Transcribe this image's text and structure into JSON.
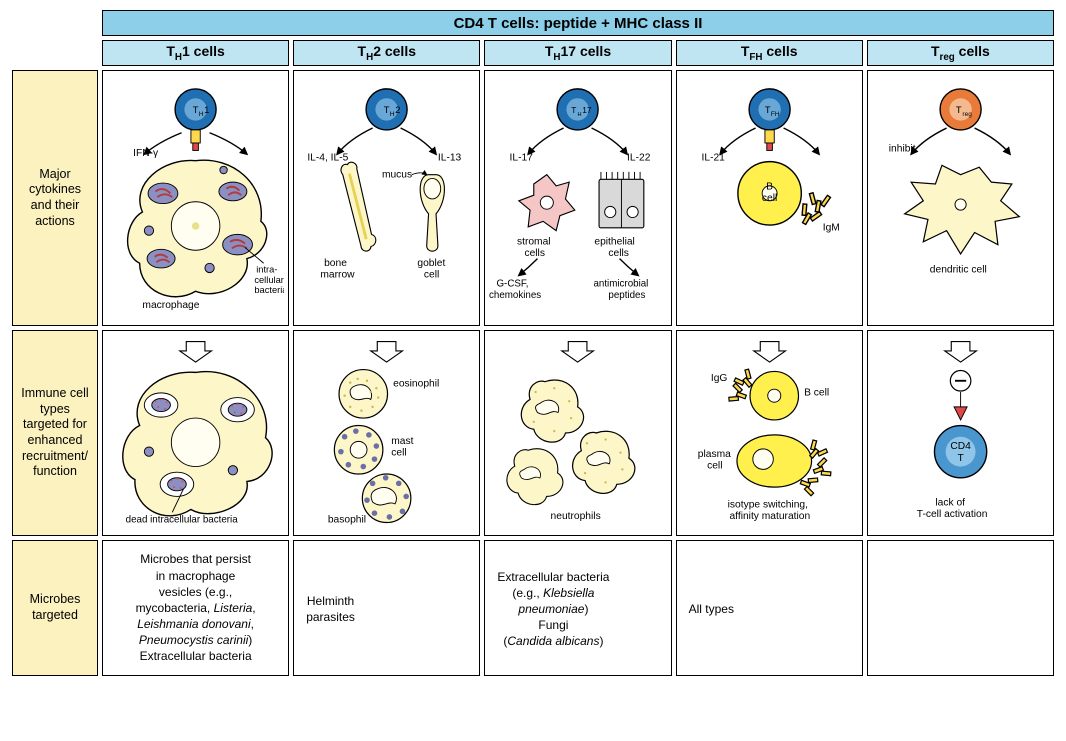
{
  "colors": {
    "banner_bg": "#8dcee8",
    "colhead_bg": "#bfe5f2",
    "rowhead_bg": "#fbf2c0",
    "border": "#000000",
    "tcell_fill": "#1f6fb2",
    "tcell_inner": "#69a8d6",
    "treg_fill": "#e87b3a",
    "treg_inner": "#f4b98f",
    "macrophage_fill": "#fdf6c8",
    "macrophage_stroke": "#000000",
    "nucleus_fill": "#8b8fc2",
    "bacteria_fill": "#b33a3a",
    "bcell_fill": "#fff04d",
    "bcell_stroke": "#000000",
    "stromal_fill": "#f4c6c6",
    "epithelial_fill": "#d9d9d9",
    "receptor_yellow": "#ffd84d",
    "receptor_red": "#e04848",
    "dendritic_fill": "#fdf6c8",
    "cd4t_fill": "#4a97d0"
  },
  "fonts": {
    "header_size": 15,
    "colhead_size": 14,
    "rowhead_size": 12.5,
    "body_size": 12,
    "label_size": 11
  },
  "header": {
    "banner": "CD4 T cells: peptide + MHC class II"
  },
  "columns": [
    {
      "id": "th1",
      "label_html": "T<sub class='small'>H</sub>1 cells",
      "tcell_label": "T_H1"
    },
    {
      "id": "th2",
      "label_html": "T<sub class='small'>H</sub>2 cells",
      "tcell_label": "T_H2"
    },
    {
      "id": "th17",
      "label_html": "T<sub class='small'>H</sub>17 cells",
      "tcell_label": "T_H17"
    },
    {
      "id": "tfh",
      "label_html": "T<sub class='small'>FH</sub> cells",
      "tcell_label": "T_FH"
    },
    {
      "id": "treg",
      "label_html": "T<sub class='small'>reg</sub> cells",
      "tcell_label": "T_reg"
    }
  ],
  "rows": [
    {
      "id": "cytokines",
      "label": "Major cytokines and their actions"
    },
    {
      "id": "targets",
      "label": "Immune cell types targeted for enhanced recruitment/ function"
    },
    {
      "id": "microbes",
      "label": "Microbes targeted"
    }
  ],
  "row1": {
    "th1": {
      "cytokine_left": "IFN-γ",
      "cell_label": "macrophage",
      "inclusion_label": "intra-\ncellular\nbacteria"
    },
    "th2": {
      "cytokine_left": "IL-4, IL-5",
      "cytokine_right": "IL-13",
      "mucus_label": "mucus",
      "left_cell": "bone\nmarrow",
      "right_cell": "goblet\ncell"
    },
    "th17": {
      "cytokine_left": "IL-17",
      "cytokine_right": "IL-22",
      "left_cell": "stromal\ncells",
      "right_cell": "epithelial\ncells",
      "left_out": "G-CSF,\nchemokines",
      "right_out": "antimicrobial\npeptides"
    },
    "tfh": {
      "cytokine_left": "IL-21",
      "bcell_label": "B\ncell",
      "ig_label": "IgM"
    },
    "treg": {
      "action_label": "inhibit",
      "target_label": "dendritic cell"
    }
  },
  "row2": {
    "th1": {
      "label": "dead intracellular bacteria"
    },
    "th2": {
      "cells": [
        "eosinophil",
        "mast\ncell",
        "basophil"
      ]
    },
    "th17": {
      "label": "neutrophils"
    },
    "tfh": {
      "igg": "IgG",
      "bcell": "B cell",
      "plasma": "plasma\ncell",
      "caption": "isotype switching,\naffinity maturation"
    },
    "treg": {
      "cd4": "CD4\nT",
      "caption": "lack of\nT-cell activation"
    }
  },
  "row3": {
    "th1": "Microbes that persist\nin macrophage\nvesicles (e.g.,\nmycobacteria, <em>Listeria</em>,\n<em>Leishmania donovani</em>,\n<em>Pneumocystis carinii</em>)\nExtracellular bacteria",
    "th2": "Helminth\nparasites",
    "th17": "Extracellular bacteria\n(e.g., <em>Klebsiella\npneumoniae</em>)\nFungi\n(<em>Candida albicans</em>)",
    "tfh": "All types",
    "treg": ""
  }
}
